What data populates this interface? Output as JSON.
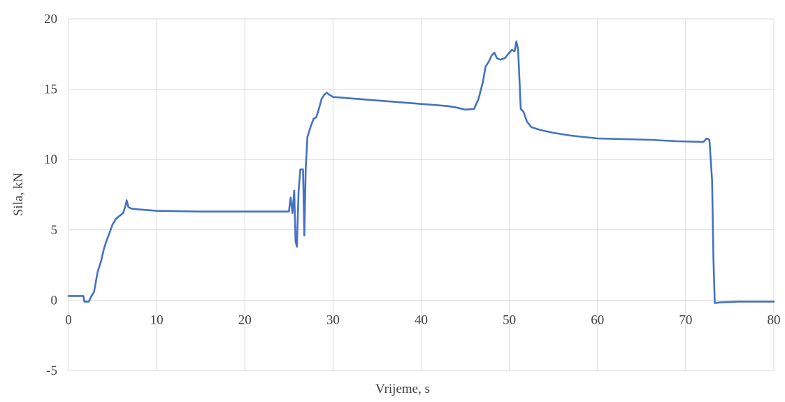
{
  "chart_data": {
    "type": "line",
    "title": "",
    "xlabel": "Vrijeme, s",
    "ylabel": "Sila, kN",
    "xlim": [
      0,
      80
    ],
    "ylim": [
      -5,
      20
    ],
    "xticks": [
      "0",
      "10",
      "20",
      "30",
      "40",
      "50",
      "60",
      "70",
      "80"
    ],
    "yticks": [
      "-5",
      "0",
      "5",
      "10",
      "15",
      "20"
    ],
    "grid": true,
    "legend": "none",
    "series_color": "#4472c4",
    "series": [
      {
        "points": [
          [
            0,
            0.3
          ],
          [
            1.7,
            0.3
          ],
          [
            1.8,
            -0.1
          ],
          [
            2.3,
            -0.1
          ],
          [
            2.6,
            0.3
          ],
          [
            2.9,
            0.6
          ],
          [
            3.1,
            1.3
          ],
          [
            3.3,
            2.0
          ],
          [
            3.7,
            2.8
          ],
          [
            4.0,
            3.6
          ],
          [
            4.3,
            4.2
          ],
          [
            4.6,
            4.7
          ],
          [
            5.0,
            5.4
          ],
          [
            5.4,
            5.8
          ],
          [
            5.8,
            6.0
          ],
          [
            6.2,
            6.2
          ],
          [
            6.5,
            6.8
          ],
          [
            6.6,
            7.1
          ],
          [
            6.8,
            6.6
          ],
          [
            7.2,
            6.5
          ],
          [
            8.0,
            6.45
          ],
          [
            10,
            6.35
          ],
          [
            15,
            6.3
          ],
          [
            20,
            6.3
          ],
          [
            24,
            6.3
          ],
          [
            25.0,
            6.3
          ],
          [
            25.2,
            7.3
          ],
          [
            25.4,
            6.2
          ],
          [
            25.6,
            7.8
          ],
          [
            25.75,
            4.2
          ],
          [
            25.9,
            3.8
          ],
          [
            26.1,
            7.8
          ],
          [
            26.3,
            9.3
          ],
          [
            26.6,
            9.3
          ],
          [
            26.75,
            4.6
          ],
          [
            26.9,
            9.3
          ],
          [
            27.1,
            11.6
          ],
          [
            27.5,
            12.4
          ],
          [
            27.8,
            12.9
          ],
          [
            28.1,
            13.0
          ],
          [
            28.4,
            13.6
          ],
          [
            28.7,
            14.3
          ],
          [
            29.0,
            14.6
          ],
          [
            29.3,
            14.75
          ],
          [
            29.6,
            14.6
          ],
          [
            30,
            14.45
          ],
          [
            32,
            14.35
          ],
          [
            35,
            14.2
          ],
          [
            38,
            14.05
          ],
          [
            41,
            13.9
          ],
          [
            43,
            13.8
          ],
          [
            44,
            13.7
          ],
          [
            45,
            13.55
          ],
          [
            46,
            13.6
          ],
          [
            46.5,
            14.3
          ],
          [
            47.0,
            15.5
          ],
          [
            47.3,
            16.6
          ],
          [
            47.7,
            17.0
          ],
          [
            48.0,
            17.4
          ],
          [
            48.3,
            17.6
          ],
          [
            48.6,
            17.2
          ],
          [
            49.0,
            17.1
          ],
          [
            49.5,
            17.2
          ],
          [
            50.0,
            17.6
          ],
          [
            50.3,
            17.8
          ],
          [
            50.6,
            17.7
          ],
          [
            50.8,
            18.4
          ],
          [
            51.0,
            17.8
          ],
          [
            51.3,
            13.6
          ],
          [
            51.6,
            13.4
          ],
          [
            52.0,
            12.7
          ],
          [
            52.5,
            12.3
          ],
          [
            53.5,
            12.1
          ],
          [
            55,
            11.9
          ],
          [
            57,
            11.7
          ],
          [
            60,
            11.5
          ],
          [
            63,
            11.45
          ],
          [
            66,
            11.4
          ],
          [
            69,
            11.3
          ],
          [
            72,
            11.25
          ],
          [
            72.4,
            11.5
          ],
          [
            72.7,
            11.4
          ],
          [
            73.0,
            8.5
          ],
          [
            73.15,
            3.0
          ],
          [
            73.3,
            -0.2
          ],
          [
            74,
            -0.15
          ],
          [
            76,
            -0.1
          ],
          [
            80,
            -0.1
          ]
        ]
      }
    ]
  }
}
